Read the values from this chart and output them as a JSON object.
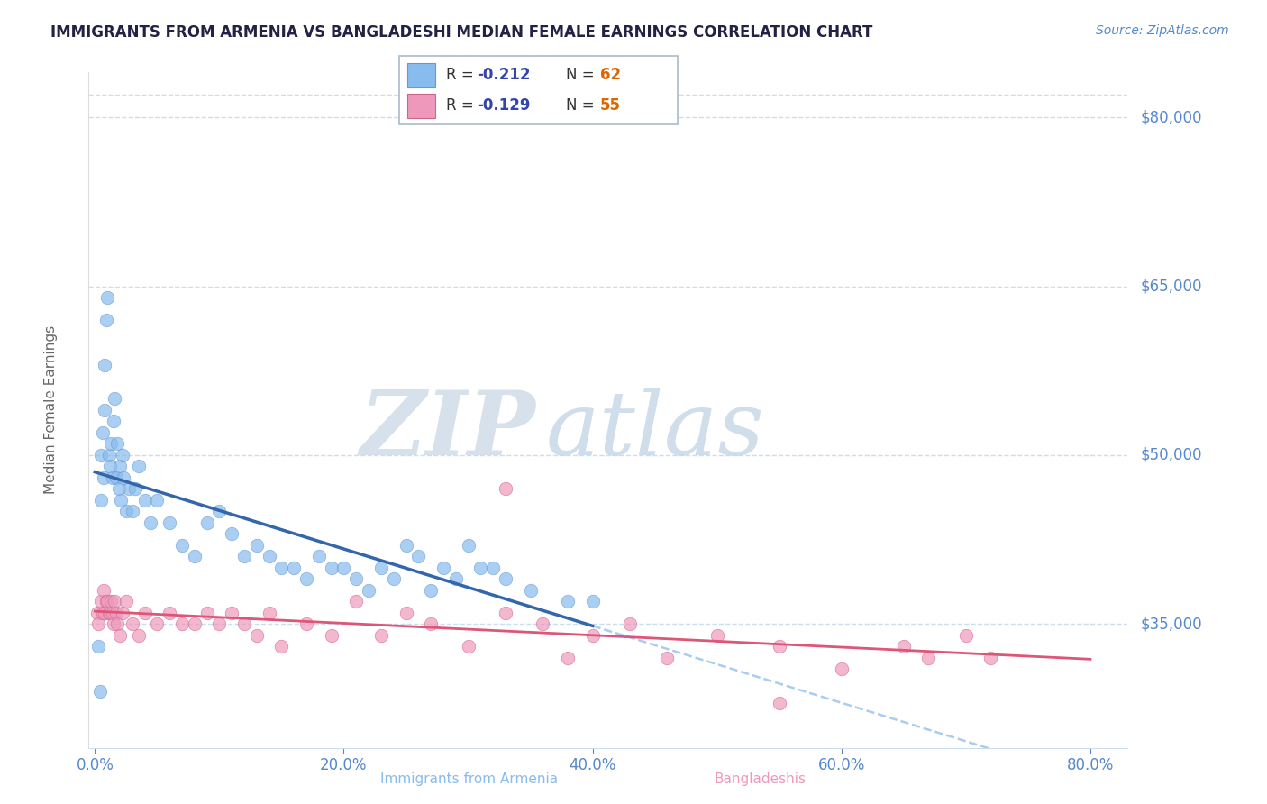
{
  "title": "IMMIGRANTS FROM ARMENIA VS BANGLADESHI MEDIAN FEMALE EARNINGS CORRELATION CHART",
  "source_text": "Source: ZipAtlas.com",
  "ylabel": "Median Female Earnings",
  "yticks": [
    35000,
    50000,
    65000,
    80000
  ],
  "ytick_labels": [
    "$35,000",
    "$50,000",
    "$65,000",
    "$80,000"
  ],
  "ylim": [
    24000,
    84000
  ],
  "xlim": [
    -0.5,
    83
  ],
  "xtick_vals": [
    0,
    20,
    40,
    60,
    80
  ],
  "xtick_labels": [
    "0.0%",
    "20.0%",
    "40.0%",
    "60.0%",
    "80.0%"
  ],
  "armenia_color": "#88bbee",
  "armenia_edge_color": "#6699cc",
  "bangladesh_color": "#ee99bb",
  "bangladesh_edge_color": "#cc6688",
  "armenia_line_color": "#3366aa",
  "bangladesh_line_color": "#dd5577",
  "dashed_line_color": "#aaccee",
  "watermark_zip_color": "#d0dce8",
  "watermark_atlas_color": "#c8d8e8",
  "title_color": "#222244",
  "axis_color": "#5588cc",
  "grid_color": "#ccddee",
  "source_color": "#5588cc",
  "legend_r_color": "#3344aa",
  "legend_n_color": "#dd6600",
  "legend_text_color": "#333333",
  "legend_box_color": "#ddeeff",
  "r_armenia": "-0.212",
  "n_armenia": "62",
  "r_bangladesh": "-0.129",
  "n_bangladesh": "55",
  "armenia_x": [
    0.3,
    0.4,
    0.5,
    0.5,
    0.6,
    0.7,
    0.8,
    0.8,
    0.9,
    1.0,
    1.1,
    1.2,
    1.3,
    1.4,
    1.5,
    1.6,
    1.7,
    1.8,
    1.9,
    2.0,
    2.1,
    2.2,
    2.3,
    2.5,
    2.7,
    3.0,
    3.2,
    3.5,
    4.0,
    4.5,
    5.0,
    6.0,
    7.0,
    8.0,
    9.0,
    10.0,
    11.0,
    12.0,
    13.0,
    14.0,
    15.0,
    16.0,
    17.0,
    18.0,
    19.0,
    20.0,
    21.0,
    22.0,
    23.0,
    24.0,
    25.0,
    26.0,
    27.0,
    28.0,
    29.0,
    30.0,
    31.0,
    32.0,
    33.0,
    35.0,
    38.0,
    40.0
  ],
  "armenia_y": [
    33000,
    29000,
    46000,
    50000,
    52000,
    48000,
    58000,
    54000,
    62000,
    64000,
    50000,
    49000,
    51000,
    48000,
    53000,
    55000,
    48000,
    51000,
    47000,
    49000,
    46000,
    50000,
    48000,
    45000,
    47000,
    45000,
    47000,
    49000,
    46000,
    44000,
    46000,
    44000,
    42000,
    41000,
    44000,
    45000,
    43000,
    41000,
    42000,
    41000,
    40000,
    40000,
    39000,
    41000,
    40000,
    40000,
    39000,
    38000,
    40000,
    39000,
    42000,
    41000,
    38000,
    40000,
    39000,
    42000,
    40000,
    40000,
    39000,
    38000,
    37000,
    37000
  ],
  "bangladesh_x": [
    0.2,
    0.3,
    0.5,
    0.6,
    0.7,
    0.8,
    0.9,
    1.0,
    1.1,
    1.2,
    1.3,
    1.4,
    1.5,
    1.6,
    1.7,
    1.8,
    2.0,
    2.2,
    2.5,
    3.0,
    3.5,
    4.0,
    5.0,
    6.0,
    7.0,
    8.0,
    9.0,
    10.0,
    11.0,
    12.0,
    13.0,
    14.0,
    15.0,
    17.0,
    19.0,
    21.0,
    23.0,
    25.0,
    27.0,
    30.0,
    33.0,
    36.0,
    38.0,
    40.0,
    43.0,
    46.0,
    50.0,
    55.0,
    60.0,
    65.0,
    67.0,
    70.0,
    72.0,
    55.0,
    33.0
  ],
  "bangladesh_y": [
    36000,
    35000,
    37000,
    36000,
    38000,
    36000,
    37000,
    37000,
    36000,
    36000,
    37000,
    36000,
    35000,
    37000,
    36000,
    35000,
    34000,
    36000,
    37000,
    35000,
    34000,
    36000,
    35000,
    36000,
    35000,
    35000,
    36000,
    35000,
    36000,
    35000,
    34000,
    36000,
    33000,
    35000,
    34000,
    37000,
    34000,
    36000,
    35000,
    33000,
    36000,
    35000,
    32000,
    34000,
    35000,
    32000,
    34000,
    33000,
    31000,
    33000,
    32000,
    34000,
    32000,
    28000,
    47000
  ]
}
